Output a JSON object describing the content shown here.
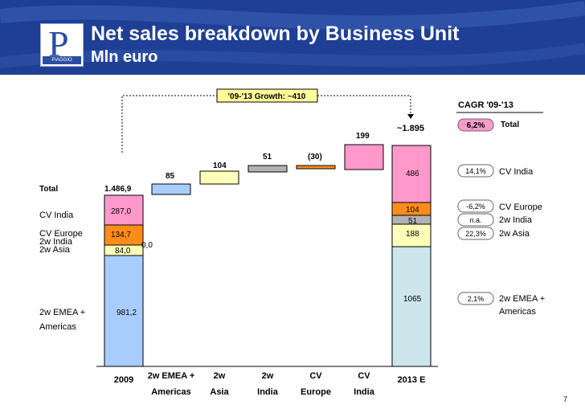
{
  "header": {
    "title": "Net sales breakdown by Business Unit",
    "subtitle": "Mln euro",
    "logo_label": "PIAGGIO"
  },
  "colors": {
    "header_bg": "#1f3f96",
    "emea": "#a9cdfa",
    "asia": "#ffffb9",
    "europe": "#ff8c1a",
    "india_2w": "#b3b3b3",
    "cv_india": "#ff99cc",
    "target_emea": "#cde6ec",
    "growth_box": "#ffff99",
    "cagr_box": "#ff99cc"
  },
  "growth_label": "'09-'13 Growth: ~410",
  "total_2013_label": "~1.895",
  "cagr": {
    "title": "CAGR '09-'13",
    "items": [
      {
        "value": "6,2%",
        "label": "Total",
        "highlight": true
      },
      {
        "value": "14,1%",
        "label": "CV India",
        "highlight": false
      },
      {
        "value": "-6,2%",
        "label": "CV Europe",
        "highlight": false
      },
      {
        "value": "n.a.",
        "label": "2w India",
        "highlight": false
      },
      {
        "value": "22,3%",
        "label": "2w Asia",
        "highlight": false
      },
      {
        "value": "2,1%",
        "label": "2w EMEA +",
        "label2": "Americas",
        "highlight": false
      }
    ]
  },
  "left_labels": {
    "total": "Total",
    "total_value": "1.486,9",
    "cv_india": "CV India",
    "cv_europe": "CV Europe",
    "w2_india": "2w India",
    "w2_asia": "2w Asia",
    "w2_emea": "2w EMEA +",
    "w2_emea2": "Americas"
  },
  "page_number": "7",
  "chart_data": {
    "type": "bar",
    "subtype": "waterfall",
    "title": "Net sales breakdown by Business Unit",
    "unit": "Mln euro",
    "categories": [
      [
        "2009"
      ],
      [
        "2w EMEA +",
        "Americas"
      ],
      [
        "2w",
        "Asia"
      ],
      [
        "2w",
        "India"
      ],
      [
        "CV",
        "Europe"
      ],
      [
        "CV",
        "India"
      ],
      [
        "2013 E"
      ]
    ],
    "start_2009": {
      "total": "1.486,9",
      "segments": [
        {
          "series": "2w EMEA + Americas",
          "value": 981.2,
          "label": "981,2"
        },
        {
          "series": "2w Asia",
          "value": 84.0,
          "label": "84,0"
        },
        {
          "series": "2w India",
          "value": 0.0,
          "label": "0,0"
        },
        {
          "series": "CV Europe",
          "value": 134.7,
          "label": "134,7"
        },
        {
          "series": "CV India",
          "value": 287.0,
          "label": "287,0"
        }
      ]
    },
    "deltas": [
      {
        "series": "2w EMEA + Americas",
        "value": 85,
        "label": "85"
      },
      {
        "series": "2w Asia",
        "value": 104,
        "label": "104"
      },
      {
        "series": "2w India",
        "value": 51,
        "label": "51"
      },
      {
        "series": "CV Europe",
        "value": -30,
        "label": "(30)"
      },
      {
        "series": "CV India",
        "value": 199,
        "label": "199"
      }
    ],
    "end_2013": {
      "total": "~1.895",
      "segments": [
        {
          "series": "2w EMEA + Americas",
          "value": 1065,
          "label": "1065"
        },
        {
          "series": "2w Asia",
          "value": 188,
          "label": "188"
        },
        {
          "series": "2w India",
          "value": 51,
          "label": "51"
        },
        {
          "series": "CV Europe",
          "value": 104,
          "label": "104"
        },
        {
          "series": "CV India",
          "value": 486,
          "label": "486"
        }
      ]
    },
    "growth": "'09-'13 Growth: ~410"
  }
}
